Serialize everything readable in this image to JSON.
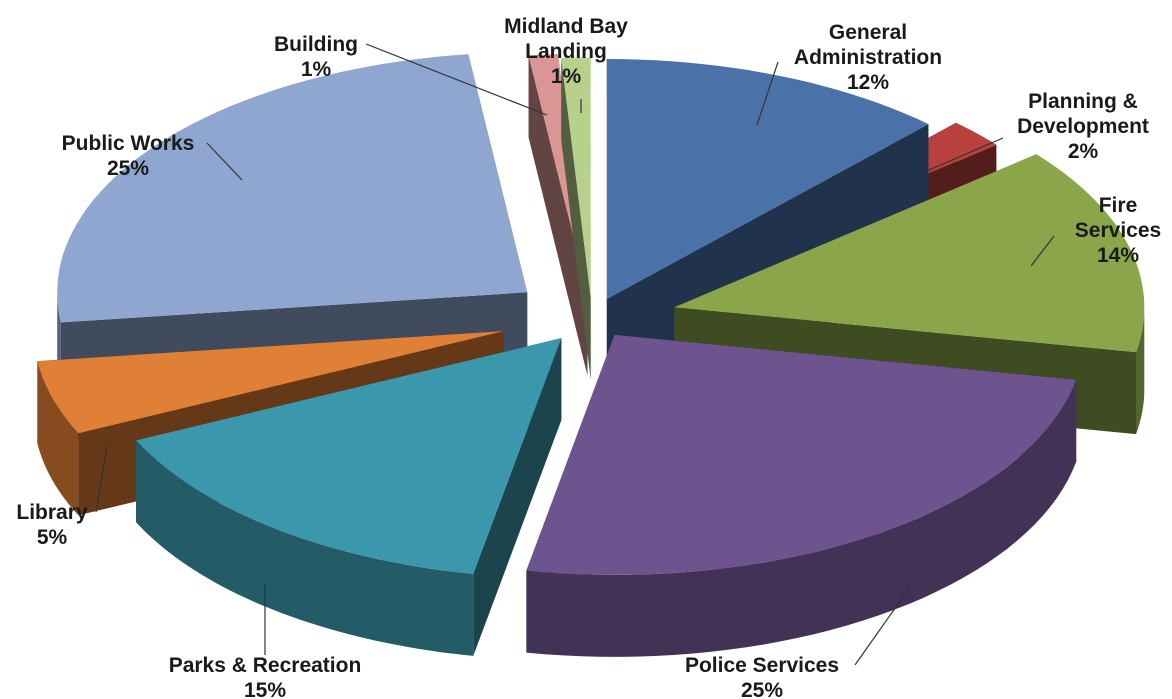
{
  "chart_data": {
    "type": "pie",
    "style": "3d-exploded",
    "title": "",
    "legend": "none",
    "slices": [
      {
        "label_lines": [
          "General",
          "Administration"
        ],
        "pct_label": "12%",
        "value": 12,
        "color": "#4a72a8"
      },
      {
        "label_lines": [
          "Planning &",
          "Development"
        ],
        "pct_label": "2%",
        "value": 2,
        "color": "#b8413e"
      },
      {
        "label_lines": [
          "Fire",
          "Services"
        ],
        "pct_label": "14%",
        "value": 14,
        "color": "#8ba64a"
      },
      {
        "label_lines": [
          "Police Services"
        ],
        "pct_label": "25%",
        "value": 25,
        "color": "#6e548e"
      },
      {
        "label_lines": [
          "Parks & Recreation"
        ],
        "pct_label": "15%",
        "value": 15,
        "color": "#3b97ab"
      },
      {
        "label_lines": [
          "Library"
        ],
        "pct_label": "5%",
        "value": 5,
        "color": "#e07f36"
      },
      {
        "label_lines": [
          "Public Works"
        ],
        "pct_label": "25%",
        "value": 25,
        "color": "#8ea6d0"
      },
      {
        "label_lines": [
          "Building"
        ],
        "pct_label": "1%",
        "value": 1,
        "color": "#d99694"
      },
      {
        "label_lines": [
          "Midland Bay",
          "Landing"
        ],
        "pct_label": "1%",
        "value": 1,
        "color": "#b7d08c"
      }
    ]
  }
}
